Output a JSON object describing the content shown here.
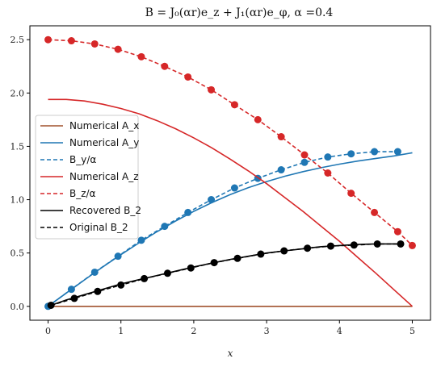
{
  "chart_data": {
    "type": "line",
    "title": "B = J₀(αr)e_z + J₁(αr)e_φ, α =0.4",
    "xlabel": "x",
    "ylabel": "",
    "xlim": [
      -0.25,
      5.25
    ],
    "ylim": [
      -0.13,
      2.63
    ],
    "xticks": [
      0,
      1,
      2,
      3,
      4,
      5
    ],
    "yticks": [
      0.0,
      0.5,
      1.0,
      1.5,
      2.0,
      2.5
    ],
    "xtick_labels": [
      "0",
      "1",
      "2",
      "3",
      "4",
      "5"
    ],
    "ytick_labels": [
      "0.0",
      "0.5",
      "1.0",
      "1.5",
      "2.0",
      "2.5"
    ],
    "grid": false,
    "legend_position": "center-left",
    "series": [
      {
        "name": "Numerical A_x",
        "color": "#a0522d",
        "style": "solid",
        "x": [
          0,
          5
        ],
        "y": [
          0,
          0
        ]
      },
      {
        "name": "Numerical A_y",
        "color": "#1f77b4",
        "style": "solid",
        "x": [
          0,
          0.25,
          0.5,
          0.75,
          1.0,
          1.25,
          1.5,
          1.75,
          2.0,
          2.25,
          2.5,
          2.75,
          3.0,
          3.25,
          3.5,
          3.75,
          4.0,
          4.25,
          4.5,
          4.75,
          5.0
        ],
        "y": [
          0.0,
          0.125,
          0.248,
          0.369,
          0.485,
          0.596,
          0.702,
          0.8,
          0.891,
          0.973,
          1.047,
          1.113,
          1.17,
          1.22,
          1.263,
          1.3,
          1.333,
          1.362,
          1.387,
          1.41,
          1.44
        ]
      },
      {
        "name": "B_y/α",
        "color": "#1f77b4",
        "style": "dashed",
        "markers": true,
        "x": [
          0.0,
          0.32,
          0.64,
          0.96,
          1.28,
          1.6,
          1.92,
          2.24,
          2.56,
          2.88,
          3.2,
          3.52,
          3.84,
          4.16,
          4.48,
          4.8
        ],
        "y": [
          0.0,
          0.16,
          0.32,
          0.47,
          0.62,
          0.75,
          0.88,
          1.0,
          1.11,
          1.2,
          1.28,
          1.35,
          1.4,
          1.43,
          1.45,
          1.45
        ]
      },
      {
        "name": "Numerical A_z",
        "color": "#d62728",
        "style": "solid",
        "x": [
          0,
          0.25,
          0.5,
          0.75,
          1.0,
          1.25,
          1.5,
          1.75,
          2.0,
          2.25,
          2.5,
          2.75,
          3.0,
          3.25,
          3.5,
          3.75,
          4.0,
          4.25,
          4.5,
          4.75,
          5.0
        ],
        "y": [
          1.94,
          1.94,
          1.925,
          1.895,
          1.855,
          1.805,
          1.74,
          1.665,
          1.58,
          1.485,
          1.38,
          1.27,
          1.15,
          1.02,
          0.89,
          0.75,
          0.61,
          0.46,
          0.31,
          0.155,
          0.0
        ]
      },
      {
        "name": "B_z/α",
        "color": "#d62728",
        "style": "dashed",
        "markers": true,
        "x": [
          0.0,
          0.32,
          0.64,
          0.96,
          1.28,
          1.6,
          1.92,
          2.24,
          2.56,
          2.88,
          3.2,
          3.52,
          3.84,
          4.16,
          4.48,
          4.8,
          5.0
        ],
        "y": [
          2.5,
          2.49,
          2.46,
          2.41,
          2.34,
          2.25,
          2.15,
          2.03,
          1.89,
          1.75,
          1.59,
          1.42,
          1.25,
          1.06,
          0.88,
          0.7,
          0.57
        ]
      },
      {
        "name": "Recovered B_2",
        "color": "#000000",
        "style": "solid",
        "x": [
          0.04,
          0.25,
          0.5,
          0.75,
          1.0,
          1.25,
          1.5,
          1.75,
          2.0,
          2.25,
          2.5,
          2.75,
          3.0,
          3.25,
          3.5,
          3.75,
          4.0,
          4.25,
          4.5,
          4.8
        ],
        "y": [
          0.01,
          0.06,
          0.11,
          0.16,
          0.21,
          0.25,
          0.29,
          0.33,
          0.37,
          0.405,
          0.44,
          0.47,
          0.5,
          0.52,
          0.54,
          0.56,
          0.57,
          0.58,
          0.585,
          0.585
        ]
      },
      {
        "name": "Original B_2",
        "color": "#000000",
        "style": "dashed",
        "markers": true,
        "x": [
          0.04,
          0.36,
          0.68,
          1.0,
          1.32,
          1.64,
          1.96,
          2.28,
          2.6,
          2.92,
          3.24,
          3.56,
          3.88,
          4.2,
          4.52,
          4.84
        ],
        "y": [
          0.01,
          0.075,
          0.14,
          0.2,
          0.26,
          0.31,
          0.36,
          0.41,
          0.45,
          0.49,
          0.52,
          0.545,
          0.565,
          0.575,
          0.585,
          0.585
        ]
      }
    ]
  }
}
